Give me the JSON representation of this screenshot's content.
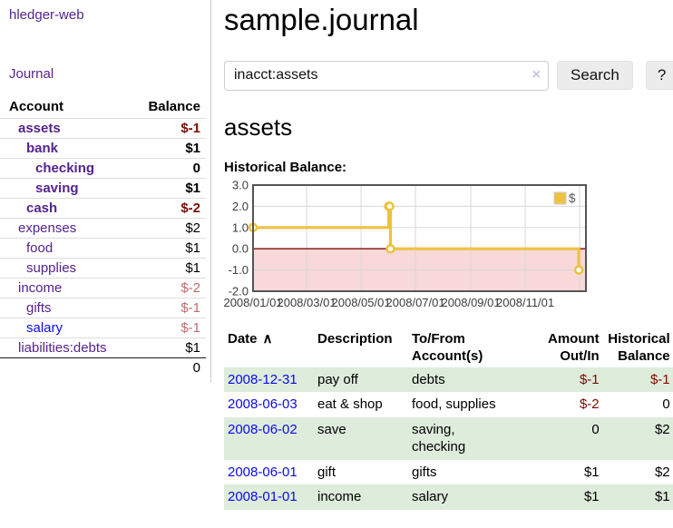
{
  "sidebar": {
    "brand": "hledger-web",
    "journal_link": "Journal",
    "accounts_header": {
      "account": "Account",
      "balance": "Balance"
    },
    "accounts": [
      {
        "name": "assets",
        "balance": "$-1"
      },
      {
        "name": "bank",
        "balance": "$1"
      },
      {
        "name": "checking",
        "balance": "0"
      },
      {
        "name": "saving",
        "balance": "$1"
      },
      {
        "name": "cash",
        "balance": "$-2"
      },
      {
        "name": "expenses",
        "balance": "$2"
      },
      {
        "name": "food",
        "balance": "$1"
      },
      {
        "name": "supplies",
        "balance": "$1"
      },
      {
        "name": "income",
        "balance": "$-2"
      },
      {
        "name": "gifts",
        "balance": "$-1"
      },
      {
        "name": "salary",
        "balance": "$-1"
      },
      {
        "name": "liabilities:debts",
        "balance": "$1"
      }
    ],
    "total": "0"
  },
  "header": {
    "title": "sample.journal"
  },
  "search": {
    "value": "inacct:assets",
    "clear_icon": "×",
    "search_button": "Search",
    "help_button": "?"
  },
  "main": {
    "account_heading": "assets",
    "chart_title": "Historical Balance:"
  },
  "chart_data": {
    "type": "line",
    "title": "Historical Balance:",
    "step": true,
    "series": [
      {
        "name": "$",
        "color": "#edc240",
        "points": [
          [
            "2008-01-01",
            1
          ],
          [
            "2008-06-01",
            2
          ],
          [
            "2008-06-02",
            2
          ],
          [
            "2008-06-03",
            0
          ],
          [
            "2008-12-31",
            -1
          ]
        ]
      }
    ],
    "x_range": [
      "2008-01-01",
      "2009-01-08"
    ],
    "x_ticks": [
      {
        "date": "2008-01-01",
        "label": "2008/01/01",
        "gridline": false
      },
      {
        "date": "2008-03-01",
        "label": "2008/03/01",
        "gridline": true
      },
      {
        "date": "2008-05-01",
        "label": "2008/05/01",
        "gridline": true
      },
      {
        "date": "2008-07-01",
        "label": "2008/07/01",
        "gridline": true
      },
      {
        "date": "2008-09-01",
        "label": "2008/09/01",
        "gridline": true
      },
      {
        "date": "2008-11-01",
        "label": "2008/11/01",
        "gridline": true
      },
      {
        "date": "2009-01-01",
        "label": "",
        "gridline": true
      }
    ],
    "y_ticks": [
      "3.0",
      "2.0",
      "1.0",
      "0.0",
      "-1.0",
      "-2.0"
    ],
    "ylim": [
      -2,
      3
    ],
    "legend": {
      "label": "$",
      "position": "top-right"
    },
    "colors": {
      "line": "#edc240",
      "negative_region": "#f8d8d8",
      "zero_line": "#7d0b05",
      "grid": "#d8d8d8",
      "border": "#545454",
      "tick_text": "#3c3c3c"
    }
  },
  "table": {
    "headers": {
      "date": "Date",
      "sort_icon": "∧",
      "description": "Description",
      "accounts": "To/From\nAccount(s)",
      "amount": "Amount\nOut/In",
      "balance": "Historical\nBalance"
    },
    "rows": [
      {
        "date": "2008-12-31",
        "description": "pay off",
        "accounts": "debts",
        "amount": "$-1",
        "balance": "$-1"
      },
      {
        "date": "2008-06-03",
        "description": "eat & shop",
        "accounts": "food, supplies",
        "amount": "$-2",
        "balance": "0"
      },
      {
        "date": "2008-06-02",
        "description": "save",
        "accounts": "saving,\nchecking",
        "amount": "0",
        "balance": "$2"
      },
      {
        "date": "2008-06-01",
        "description": "gift",
        "accounts": "gifts",
        "amount": "$1",
        "balance": "$2"
      },
      {
        "date": "2008-01-01",
        "description": "income",
        "accounts": "salary",
        "amount": "$1",
        "balance": "$1"
      }
    ]
  }
}
